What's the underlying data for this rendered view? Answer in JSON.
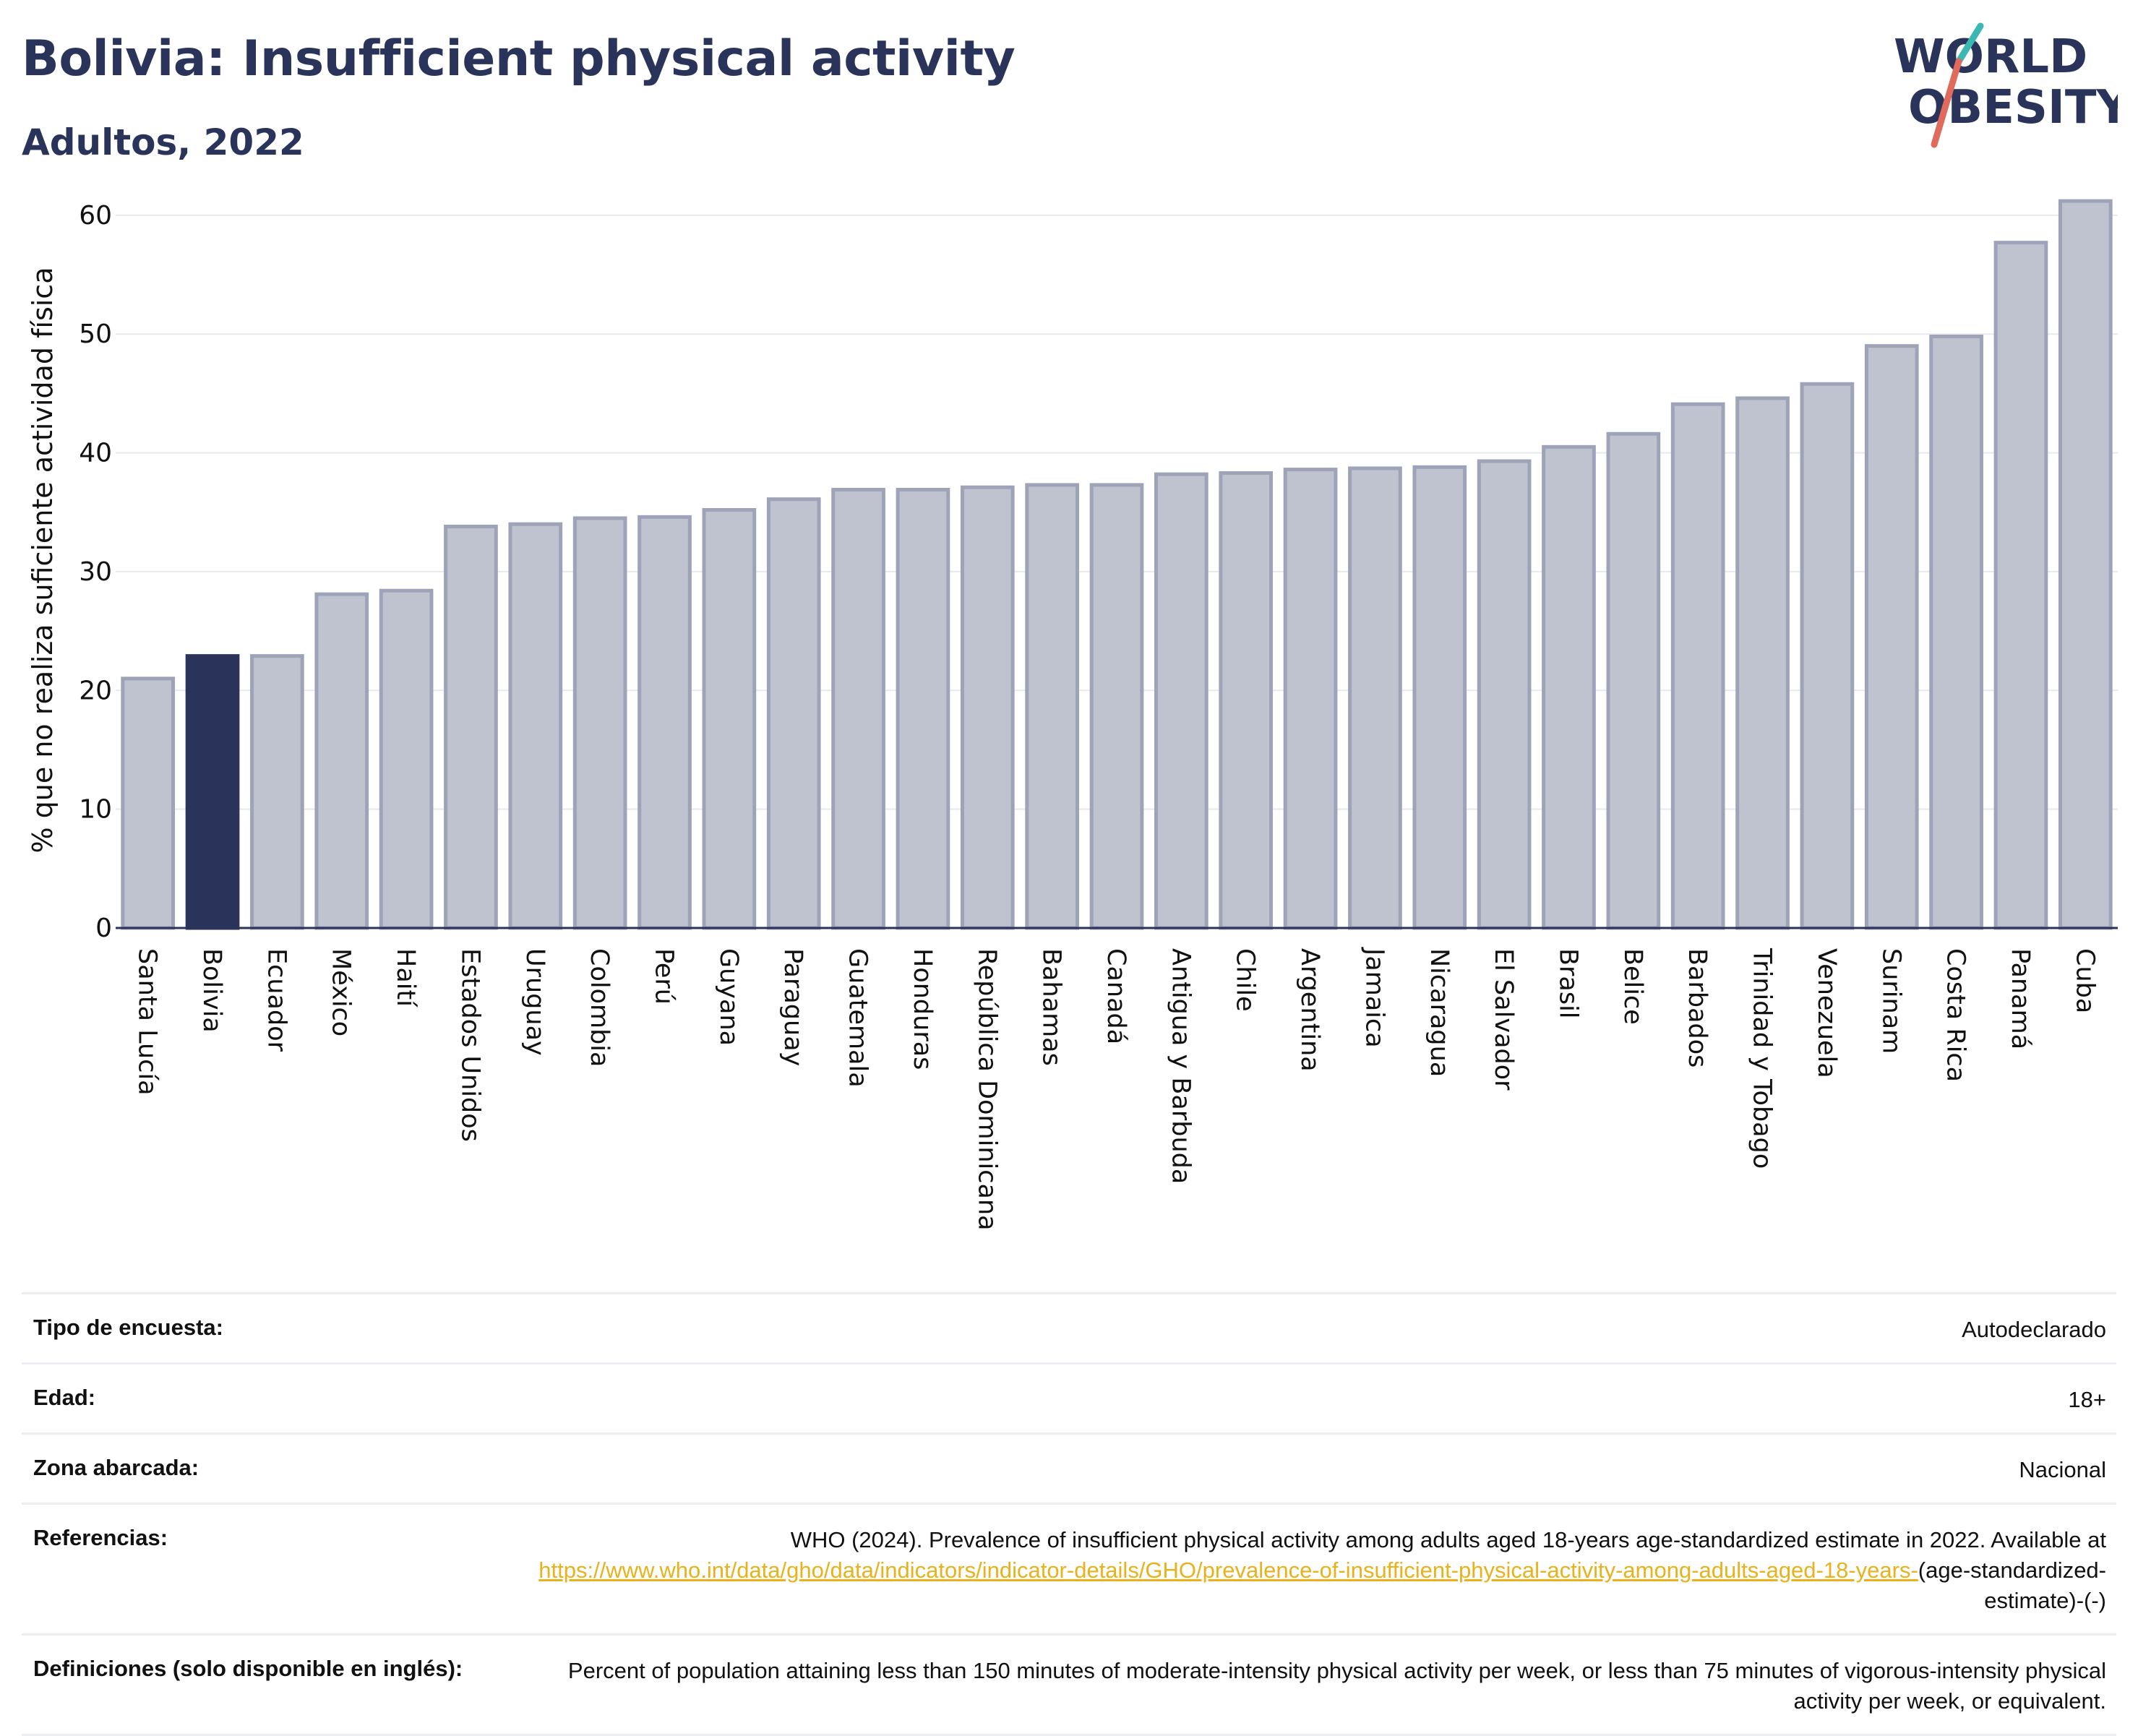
{
  "header": {
    "title": "Bolivia: Insufficient physical activity",
    "subtitle": "Adultos, 2022"
  },
  "logo": {
    "line1": "WORLD",
    "line2": "OBESITY",
    "text_color": "#2a345a",
    "slash_colors": [
      "#3cb8b2",
      "#e06a5c"
    ]
  },
  "chart_data": {
    "type": "bar",
    "title": "Bolivia: Insufficient physical activity",
    "subtitle": "Adultos, 2022",
    "xlabel": "",
    "ylabel": "% que no realiza suficiente actividad física",
    "ylim": [
      0,
      62
    ],
    "yticks": [
      0,
      10,
      20,
      30,
      40,
      50,
      60
    ],
    "grid": true,
    "highlight": "Bolivia",
    "colors": {
      "default": "#bfc2cf",
      "default_border": "#9ea3b8",
      "highlight": "#2a345a"
    },
    "categories": [
      "Santa Lucía",
      "Bolivia",
      "Ecuador",
      "México",
      "Haití",
      "Estados Unidos",
      "Uruguay",
      "Colombia",
      "Perú",
      "Guyana",
      "Paraguay",
      "Guatemala",
      "Honduras",
      "República Dominicana",
      "Bahamas",
      "Canadá",
      "Antigua y Barbuda",
      "Chile",
      "Argentina",
      "Jamaica",
      "Nicaragua",
      "El Salvador",
      "Brasil",
      "Belice",
      "Barbados",
      "Trinidad y Tobago",
      "Venezuela",
      "Surinam",
      "Costa Rica",
      "Panamá",
      "Cuba"
    ],
    "values": [
      21.0,
      22.9,
      22.9,
      28.1,
      28.4,
      33.8,
      34.0,
      34.5,
      34.6,
      35.2,
      36.1,
      36.9,
      36.9,
      37.1,
      37.3,
      37.3,
      38.2,
      38.3,
      38.6,
      38.7,
      38.8,
      39.3,
      40.5,
      41.6,
      44.1,
      44.6,
      45.8,
      49.0,
      49.8,
      57.7,
      61.2
    ]
  },
  "meta": {
    "rows": [
      {
        "key": "Tipo de encuesta:",
        "value": "Autodeclarado"
      },
      {
        "key": "Edad:",
        "value": "18+"
      },
      {
        "key": "Zona abarcada:",
        "value": "Nacional"
      }
    ],
    "references": {
      "key": "Referencias:",
      "text": "WHO (2024). Prevalence of insufficient physical activity among adults aged 18-years age-standardized estimate in 2022. Available at",
      "link": "https://www.who.int/data/gho/data/indicators/indicator-details/GHO/prevalence-of-insufficient-physical-activity-among-adults-aged-18-years-",
      "suffix": "(age-standardized-estimate)-(-)"
    },
    "definitions": {
      "key": "Definiciones (solo disponible en inglés):",
      "text": "Percent of population attaining less than 150 minutes of moderate-intensity physical activity per week, or less than 75 minutes of vigorous-intensity physical activity per week, or equivalent."
    }
  }
}
